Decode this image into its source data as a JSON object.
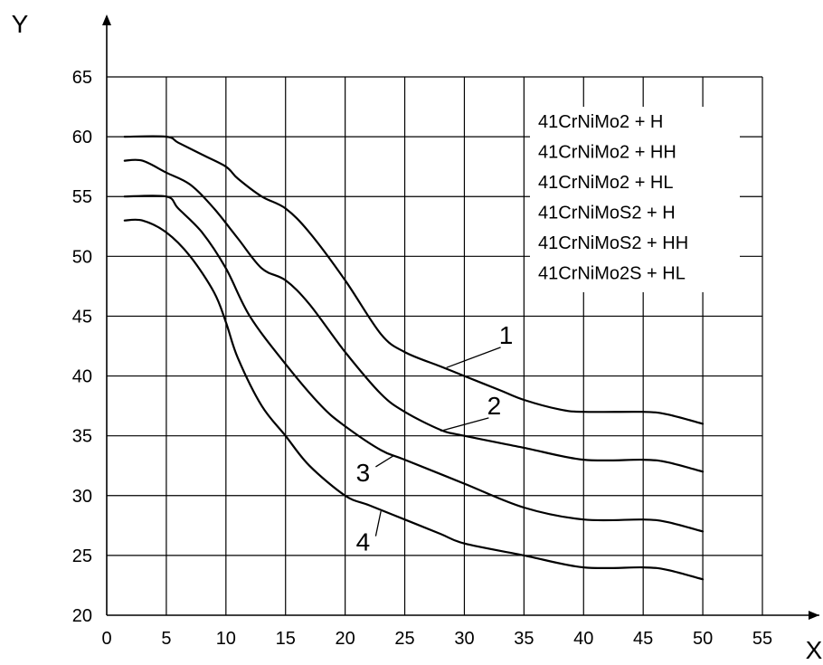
{
  "chart_data": {
    "type": "line",
    "xlabel": "X",
    "ylabel": "Y",
    "xlim": [
      0,
      55
    ],
    "ylim": [
      20,
      65
    ],
    "xticks": [
      0,
      5,
      10,
      15,
      20,
      25,
      30,
      35,
      40,
      45,
      50,
      55
    ],
    "yticks": [
      20,
      25,
      30,
      35,
      40,
      45,
      50,
      55,
      60,
      65
    ],
    "grid": true,
    "legend_position": "top-right",
    "legend_entries": [
      "41CrNiMo2 + H",
      "41CrNiMo2 + HH",
      "41CrNiMo2 + HL",
      "41CrNiMoS2 + H",
      "41CrNiMoS2 + HH",
      "41CrNiMo2S + HL"
    ],
    "series": [
      {
        "name": "1",
        "x": [
          1.5,
          5,
          6,
          8,
          10,
          11,
          13,
          15,
          17,
          20,
          23,
          25,
          28,
          30,
          33,
          35,
          38,
          40,
          45,
          47,
          50
        ],
        "y": [
          60,
          60,
          59.5,
          58.5,
          57.5,
          56.5,
          55,
          54,
          52,
          48,
          43.5,
          42,
          40.8,
          40,
          38.8,
          38,
          37.2,
          37,
          37,
          36.8,
          36
        ]
      },
      {
        "name": "2",
        "x": [
          1.5,
          3,
          5,
          7,
          9,
          11,
          13,
          15,
          17,
          20,
          23,
          25,
          28,
          30,
          35,
          40,
          45,
          47,
          50
        ],
        "y": [
          58,
          58,
          57,
          56,
          54,
          51.5,
          49,
          48,
          46,
          42,
          38.5,
          37,
          35.5,
          35,
          34,
          33,
          33,
          32.8,
          32
        ]
      },
      {
        "name": "3",
        "x": [
          1.5,
          5,
          6,
          8,
          10,
          12,
          15,
          18,
          20,
          23,
          25,
          30,
          35,
          40,
          45,
          47,
          50
        ],
        "y": [
          55,
          55,
          54,
          52,
          49,
          45,
          41,
          37.5,
          35.8,
          33.8,
          33,
          31,
          29,
          28,
          28,
          27.8,
          27
        ]
      },
      {
        "name": "4",
        "x": [
          1.5,
          3,
          5,
          7,
          9,
          10,
          11,
          13,
          15,
          17,
          20,
          22,
          25,
          28,
          30,
          35,
          40,
          45,
          47,
          50
        ],
        "y": [
          53,
          53,
          52,
          50,
          47,
          44.5,
          41.5,
          37.5,
          35,
          32.5,
          30,
          29.2,
          28,
          26.8,
          26,
          25,
          24,
          24,
          23.8,
          23
        ]
      }
    ],
    "curve_labels": [
      {
        "text": "1",
        "x": 33.5,
        "y": 42.7,
        "target": [
          28.5,
          40.7
        ]
      },
      {
        "text": "2",
        "x": 32.5,
        "y": 36.8,
        "target": [
          28,
          35.4
        ]
      },
      {
        "text": "3",
        "x": 21.5,
        "y": 31.2,
        "target": [
          24,
          33.3
        ]
      },
      {
        "text": "4",
        "x": 21.5,
        "y": 25.4,
        "target": [
          23,
          28.7
        ]
      }
    ]
  }
}
